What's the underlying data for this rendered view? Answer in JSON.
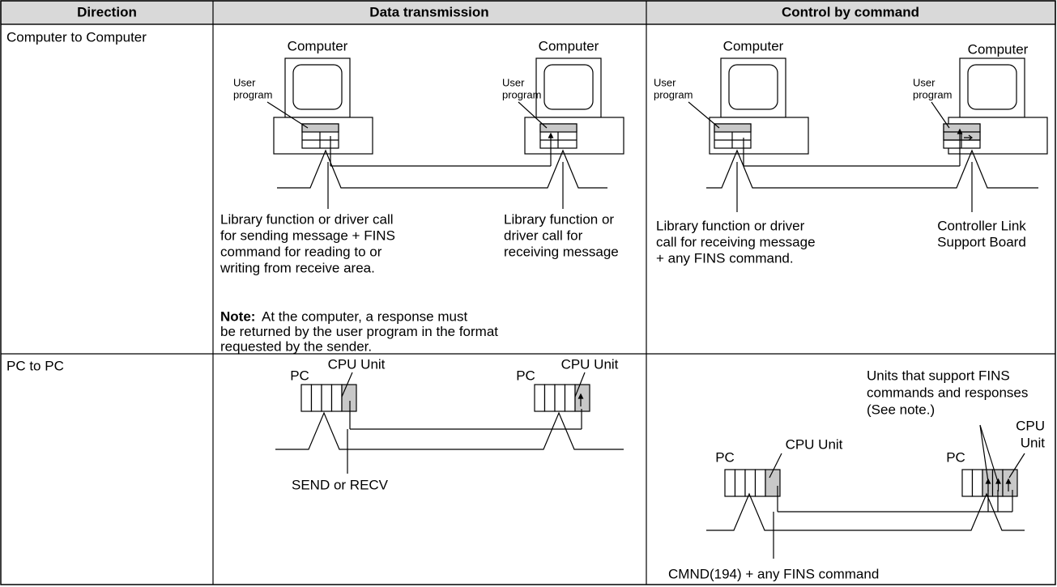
{
  "table": {
    "header": [
      "Direction",
      "Data transmission",
      "Control by command"
    ],
    "rows": [
      {
        "direction": "Computer to Computer",
        "data_transmission": {
          "computers": [
            "Computer",
            "Computer"
          ],
          "programs": [
            [
              "User",
              "program"
            ],
            [
              "User",
              "program"
            ]
          ],
          "callouts": [
            [
              "Library function or driver call",
              "for sending message + FINS",
              "command for reading to or",
              "writing from receive area."
            ],
            [
              "Library function or",
              "driver call for",
              "receiving message"
            ]
          ],
          "note": {
            "label": "Note:",
            "lines": [
              "At the computer, a response must",
              "be returned by the user program in the format",
              "requested by the sender."
            ]
          }
        },
        "control_by_command": {
          "computers": [
            "Computer",
            "Computer"
          ],
          "programs": [
            [
              "User",
              "program"
            ],
            [
              "User",
              "program"
            ]
          ],
          "callouts": [
            [
              "Library function or driver",
              "call for receiving message",
              "+ any FINS command."
            ],
            [
              "Controller Link",
              "Support Board"
            ]
          ]
        }
      },
      {
        "direction": "PC to PC",
        "data_transmission": {
          "pcs": [
            "PC",
            "PC"
          ],
          "cpu_units": [
            "CPU Unit",
            "CPU Unit"
          ],
          "callout": "SEND or RECV"
        },
        "control_by_command": {
          "pcs": [
            "PC",
            "PC"
          ],
          "cpu_units": [
            [
              "CPU Unit"
            ],
            [
              "CPU",
              "Unit"
            ]
          ],
          "units_note": [
            "Units that support FINS",
            "commands and responses",
            "(See note.)"
          ],
          "callout": "CMND(194) + any FINS command"
        }
      }
    ]
  }
}
